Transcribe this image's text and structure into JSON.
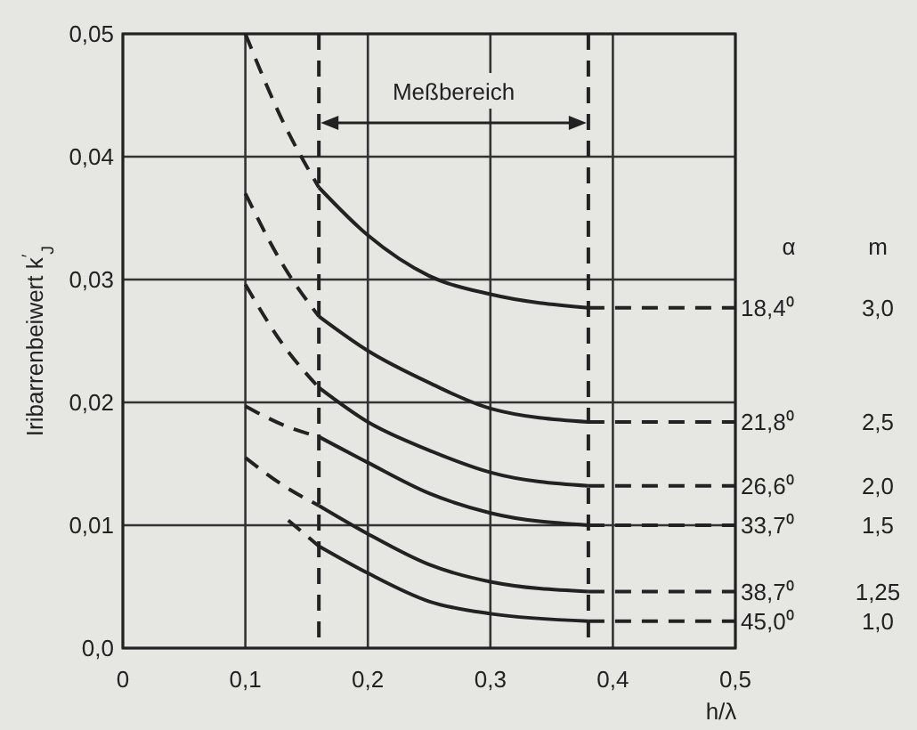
{
  "chart_data": {
    "type": "line",
    "xlabel": "h/λ",
    "ylabel": "Iribarrenbeiwert k$^{′}$$_{J}$",
    "xlim": [
      0,
      0.5
    ],
    "ylim": [
      0,
      0.05
    ],
    "xticks": [
      {
        "value": 0,
        "label": "0"
      },
      {
        "value": 0.1,
        "label": "0,1"
      },
      {
        "value": 0.2,
        "label": "0,2"
      },
      {
        "value": 0.3,
        "label": "0,3"
      },
      {
        "value": 0.4,
        "label": "0,4"
      },
      {
        "value": 0.5,
        "label": "0,5"
      }
    ],
    "yticks": [
      {
        "value": 0,
        "label": "0,0"
      },
      {
        "value": 0.01,
        "label": "0,01"
      },
      {
        "value": 0.02,
        "label": "0,02"
      },
      {
        "value": 0.03,
        "label": "0,03"
      },
      {
        "value": 0.04,
        "label": "0,04"
      },
      {
        "value": 0.05,
        "label": "0,05"
      }
    ],
    "grid": true,
    "ref_lines": [
      {
        "axis": "x",
        "value": 0.16,
        "line_style": "dashed",
        "color": "#222222"
      },
      {
        "axis": "x",
        "value": 0.38,
        "line_style": "dashed",
        "color": "#222222"
      }
    ],
    "annotations": [
      "Meßbereich",
      "α",
      "m",
      "3,0",
      "2,5",
      "2,0",
      "1,5",
      "1,25",
      "1,0"
    ],
    "series": [
      {
        "color": "#222222",
        "line_style": "dashed",
        "x": [
          0.1,
          0.13,
          0.16
        ],
        "values": [
          0.05,
          0.043,
          0.0375
        ]
      },
      {
        "color": "#222222",
        "line_style": "solid",
        "x": [
          0.16,
          0.2,
          0.25,
          0.3,
          0.38
        ],
        "values": [
          0.0375,
          0.0336,
          0.0303,
          0.0288,
          0.0277
        ]
      },
      {
        "name": "18,4⁰",
        "color": "#222222",
        "line_style": "dashed",
        "x": [
          0.38,
          0.5
        ],
        "values": [
          0.0277,
          0.0277
        ]
      },
      {
        "color": "#222222",
        "line_style": "dashed",
        "x": [
          0.1,
          0.13,
          0.16
        ],
        "values": [
          0.037,
          0.0313,
          0.027
        ]
      },
      {
        "color": "#222222",
        "line_style": "solid",
        "x": [
          0.16,
          0.2,
          0.25,
          0.3,
          0.38
        ],
        "values": [
          0.027,
          0.0242,
          0.0216,
          0.0195,
          0.0184
        ]
      },
      {
        "name": "21,8⁰",
        "color": "#222222",
        "line_style": "dashed",
        "x": [
          0.38,
          0.5
        ],
        "values": [
          0.0184,
          0.0184
        ]
      },
      {
        "color": "#222222",
        "line_style": "dashed",
        "x": [
          0.1,
          0.13,
          0.16
        ],
        "values": [
          0.0296,
          0.0248,
          0.0212
        ]
      },
      {
        "color": "#222222",
        "line_style": "solid",
        "x": [
          0.16,
          0.2,
          0.25,
          0.3,
          0.38
        ],
        "values": [
          0.0212,
          0.0184,
          0.0161,
          0.0143,
          0.0132
        ]
      },
      {
        "name": "26,6⁰",
        "color": "#222222",
        "line_style": "dashed",
        "x": [
          0.38,
          0.5
        ],
        "values": [
          0.0132,
          0.0132
        ]
      },
      {
        "color": "#222222",
        "line_style": "dashed",
        "x": [
          0.1,
          0.13,
          0.16
        ],
        "values": [
          0.0197,
          0.0182,
          0.0172
        ]
      },
      {
        "color": "#222222",
        "line_style": "solid",
        "x": [
          0.16,
          0.2,
          0.25,
          0.3,
          0.38
        ],
        "values": [
          0.0172,
          0.0151,
          0.0126,
          0.011,
          0.01
        ]
      },
      {
        "name": "33,7⁰",
        "color": "#222222",
        "line_style": "dashed",
        "x": [
          0.38,
          0.5
        ],
        "values": [
          0.01,
          0.01
        ]
      },
      {
        "color": "#222222",
        "line_style": "dashed",
        "x": [
          0.1,
          0.13,
          0.16
        ],
        "values": [
          0.0155,
          0.0133,
          0.0116
        ]
      },
      {
        "color": "#222222",
        "line_style": "solid",
        "x": [
          0.16,
          0.2,
          0.25,
          0.3,
          0.38
        ],
        "values": [
          0.0116,
          0.0093,
          0.0068,
          0.0054,
          0.0046
        ]
      },
      {
        "name": "38,7⁰",
        "color": "#222222",
        "line_style": "dashed",
        "x": [
          0.38,
          0.5
        ],
        "values": [
          0.0046,
          0.0046
        ]
      },
      {
        "color": "#222222",
        "line_style": "dashed",
        "x": [
          0.135,
          0.16
        ],
        "values": [
          0.0104,
          0.0083
        ]
      },
      {
        "color": "#222222",
        "line_style": "solid",
        "x": [
          0.16,
          0.2,
          0.25,
          0.3,
          0.38
        ],
        "values": [
          0.0083,
          0.0061,
          0.0038,
          0.0028,
          0.0022
        ]
      },
      {
        "name": "45,0⁰",
        "color": "#222222",
        "line_style": "dashed",
        "x": [
          0.38,
          0.5
        ],
        "values": [
          0.0022,
          0.0022
        ]
      }
    ]
  }
}
